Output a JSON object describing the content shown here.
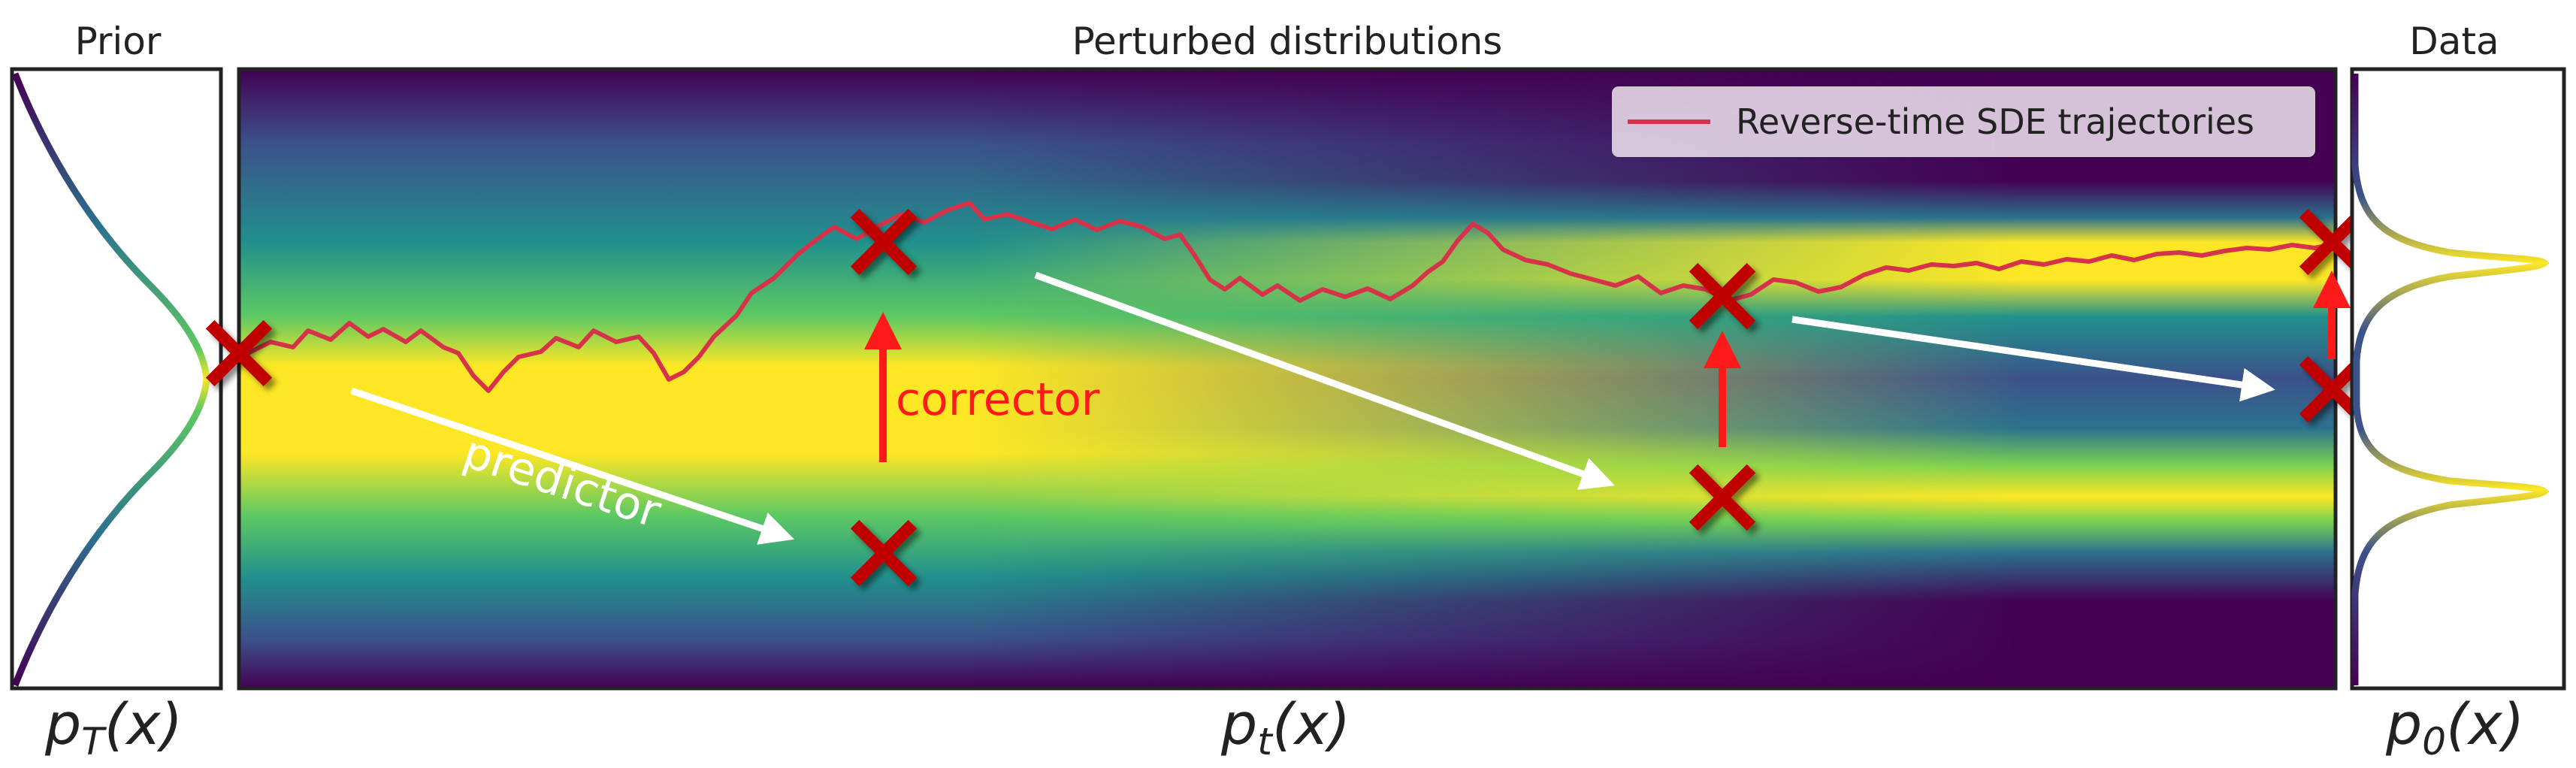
{
  "titles": {
    "prior": "Prior",
    "perturbed": "Perturbed distributions",
    "data": "Data"
  },
  "axis_labels": {
    "prior_base": "p",
    "prior_sub": "T",
    "prior_arg": "(x)",
    "middle_base": "p",
    "middle_sub": "t",
    "middle_arg": "(x)",
    "data_base": "p",
    "data_sub": "0",
    "data_arg": "(x)"
  },
  "annotations": {
    "predictor": "predictor",
    "corrector": "corrector"
  },
  "legend": {
    "entry": "Reverse-time SDE trajectories",
    "line_color": "#d6334a"
  },
  "colors": {
    "viridis_low": "#440154",
    "viridis_mid": "#21908c",
    "viridis_high": "#fde725",
    "marker": "#c00000",
    "arrow_predictor": "#ffffff",
    "arrow_corrector": "#ff1a1a",
    "frame": "#222222"
  },
  "icons": {
    "marker": "x-marker-icon",
    "predictor_arrow": "arrow-right-down-icon",
    "corrector_arrow": "arrow-up-icon"
  }
}
